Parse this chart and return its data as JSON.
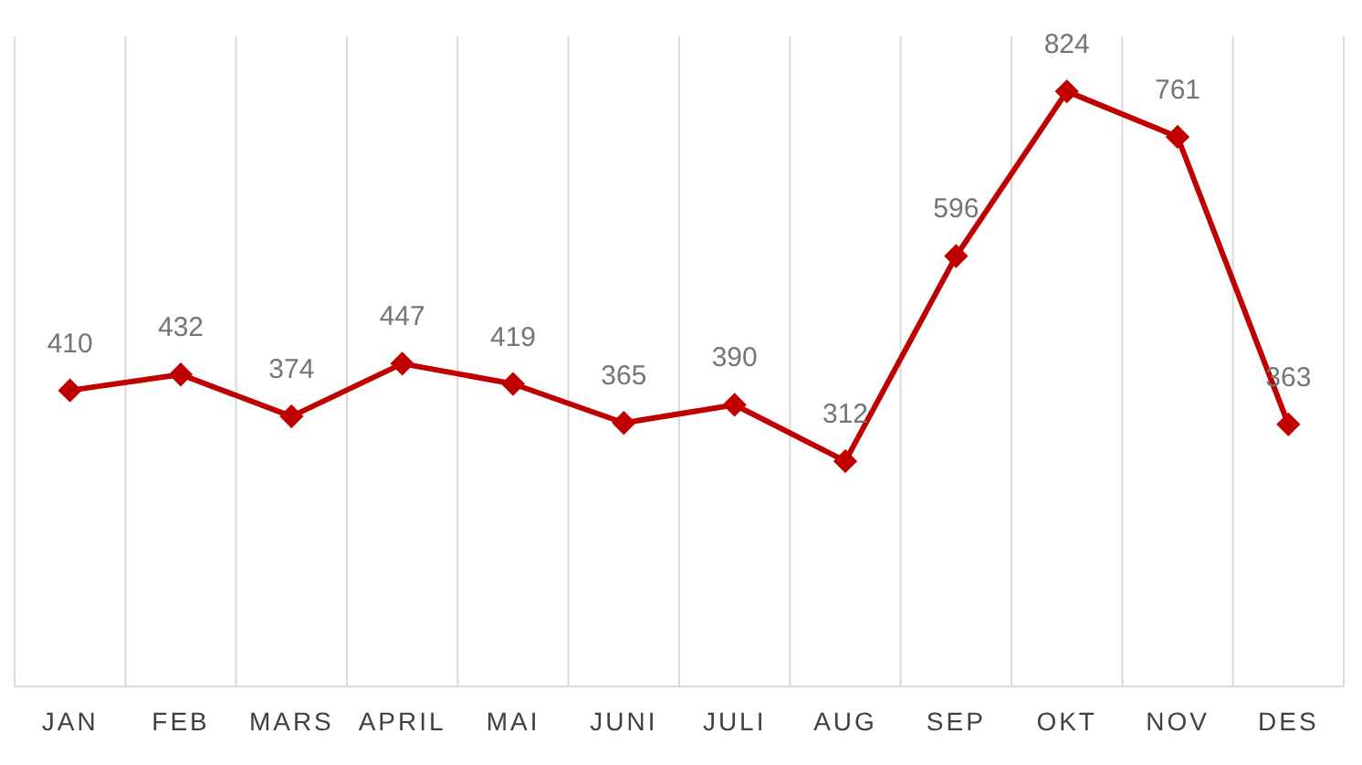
{
  "chart_data": {
    "type": "line",
    "categories": [
      "JAN",
      "FEB",
      "MARS",
      "APRIL",
      "MAI",
      "JUNI",
      "JULI",
      "AUG",
      "SEP",
      "OKT",
      "NOV",
      "DES"
    ],
    "series": [
      {
        "color": "#c00000",
        "values": [
          410,
          432,
          374,
          447,
          419,
          365,
          390,
          312,
          596,
          824,
          761,
          363
        ]
      }
    ],
    "ylim": [
      0,
      900
    ],
    "grid": "x",
    "marker": "diamond",
    "line_style": "solid",
    "data_labels": true
  }
}
